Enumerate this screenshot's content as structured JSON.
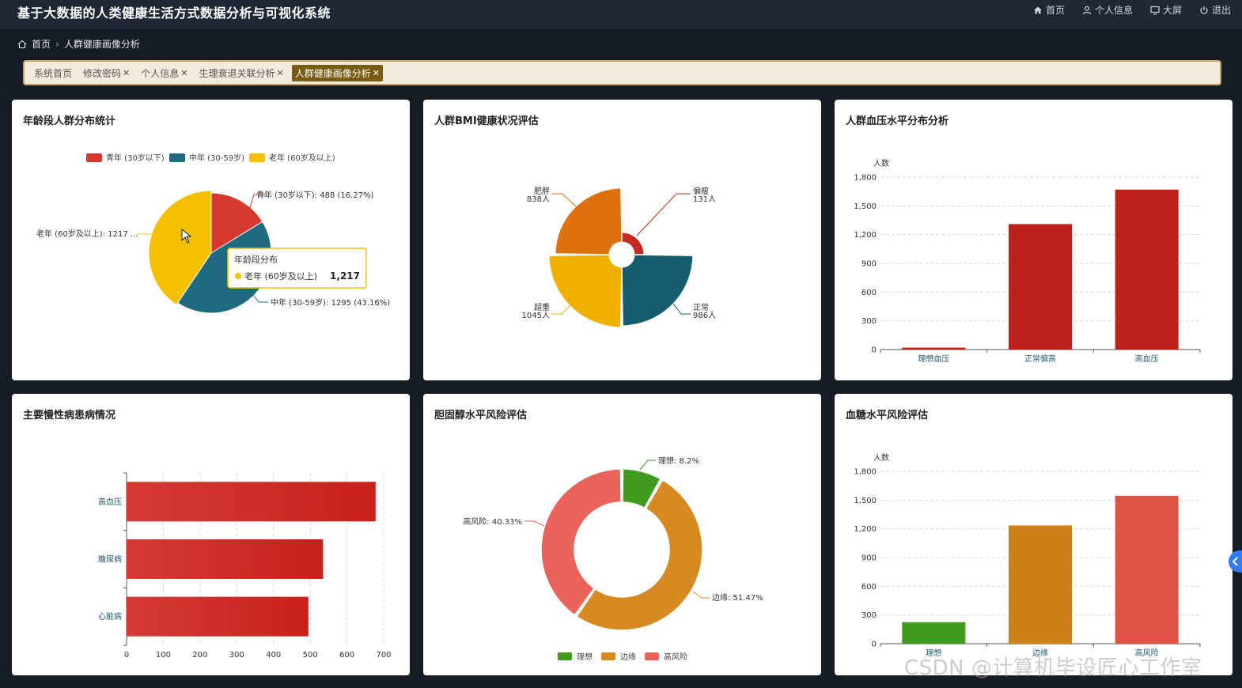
{
  "header": {
    "title": "基于大数据的人类健康生活方式数据分析与可视化系统",
    "nav": [
      {
        "label": "首页",
        "icon": "home-icon"
      },
      {
        "label": "个人信息",
        "icon": "user-icon"
      },
      {
        "label": "大屏",
        "icon": "monitor-icon"
      },
      {
        "label": "退出",
        "icon": "power-icon"
      }
    ]
  },
  "breadcrumb": {
    "home": "首页",
    "current": "人群健康画像分析"
  },
  "tabs": [
    {
      "label": "系统首页",
      "closable": false,
      "active": false
    },
    {
      "label": "修改密码",
      "closable": true,
      "active": false
    },
    {
      "label": "个人信息",
      "closable": true,
      "active": false
    },
    {
      "label": "生理衰退关联分析",
      "closable": true,
      "active": false
    },
    {
      "label": "人群健康画像分析",
      "closable": true,
      "active": true
    }
  ],
  "cards": {
    "age": {
      "title": "年龄段人群分布统计",
      "chart_data": {
        "type": "pie",
        "legend": [
          "青年 (30岁以下)",
          "中年 (30-59岁)",
          "老年 (60岁及以上)"
        ],
        "slices": [
          {
            "name": "青年 (30岁以下)",
            "value": 488,
            "label": "青年 (30岁以下): 488 (16.27%)",
            "color": "#d63a2f"
          },
          {
            "name": "中年 (30-59岁)",
            "value": 1295,
            "label": "中年 (30-59岁): 1295 (43.16%)",
            "color": "#1e6b80"
          },
          {
            "name": "老年 (60岁及以上)",
            "value": 1217,
            "label": "老年 (60岁及以上): 1217 ...",
            "color": "#f5c000"
          }
        ],
        "tooltip": {
          "title": "年龄段分布",
          "name": "老年 (60岁及以上)",
          "value": "1,217"
        }
      }
    },
    "bmi": {
      "title": "人群BMI健康状况评估",
      "chart_data": {
        "type": "pie",
        "rose": true,
        "slices": [
          {
            "name": "偏瘦",
            "value": 131,
            "label_name": "偏瘦",
            "label_value": "131人",
            "color": "#c42b22"
          },
          {
            "name": "正常",
            "value": 986,
            "label_name": "正常",
            "label_value": "986人",
            "color": "#155d6e"
          },
          {
            "name": "超重",
            "value": 1045,
            "label_name": "超重",
            "label_value": "1045人",
            "color": "#efb000"
          },
          {
            "name": "肥胖",
            "value": 838,
            "label_name": "肥胖",
            "label_value": "838人",
            "color": "#e0700e"
          }
        ]
      }
    },
    "bp": {
      "title": "人群血压水平分布分析",
      "chart_data": {
        "type": "bar",
        "ylabel": "人数",
        "yticks": [
          "0",
          "300",
          "600",
          "900",
          "1,200",
          "1,500",
          "1,800"
        ],
        "ylim": [
          0,
          1800
        ],
        "categories": [
          "理想血压",
          "正常偏高",
          "高血压"
        ],
        "values": [
          20,
          1310,
          1670
        ],
        "colors": [
          "#c0201a",
          "#c0201a",
          "#c0201a"
        ]
      }
    },
    "chronic": {
      "title": "主要慢性病患病情况",
      "chart_data": {
        "type": "bar",
        "orientation": "horizontal",
        "categories": [
          "高血压",
          "糖尿病",
          "心脏病"
        ],
        "values": [
          678,
          535,
          495
        ],
        "xticks": [
          "0",
          "100",
          "200",
          "300",
          "400",
          "500",
          "600",
          "700"
        ],
        "xlim": [
          0,
          700
        ],
        "color": "#c9201c"
      }
    },
    "chol": {
      "title": "胆固醇水平风险评估",
      "chart_data": {
        "type": "pie",
        "donut": true,
        "legend": [
          "理想",
          "边缘",
          "高风险"
        ],
        "slices": [
          {
            "name": "理想",
            "value": 8.2,
            "label": "理想: 8.2%",
            "color": "#3f9a1f"
          },
          {
            "name": "边缘",
            "value": 51.47,
            "label": "边缘: 51.47%",
            "color": "#d88a22"
          },
          {
            "name": "高风险",
            "value": 40.33,
            "label": "高风险: 40.33%",
            "color": "#ea635a"
          }
        ]
      }
    },
    "glucose": {
      "title": "血糖水平风险评估",
      "chart_data": {
        "type": "bar",
        "ylabel": "人数",
        "yticks": [
          "0",
          "300",
          "600",
          "900",
          "1,200",
          "1,500",
          "1,800"
        ],
        "ylim": [
          0,
          1800
        ],
        "categories": [
          "理想",
          "边缘",
          "高风险"
        ],
        "values": [
          225,
          1235,
          1545
        ],
        "colors": [
          "#3f9a1f",
          "#cc8018",
          "#df5244"
        ]
      }
    }
  },
  "watermark": "CSDN @计算机毕设匠心工作室"
}
